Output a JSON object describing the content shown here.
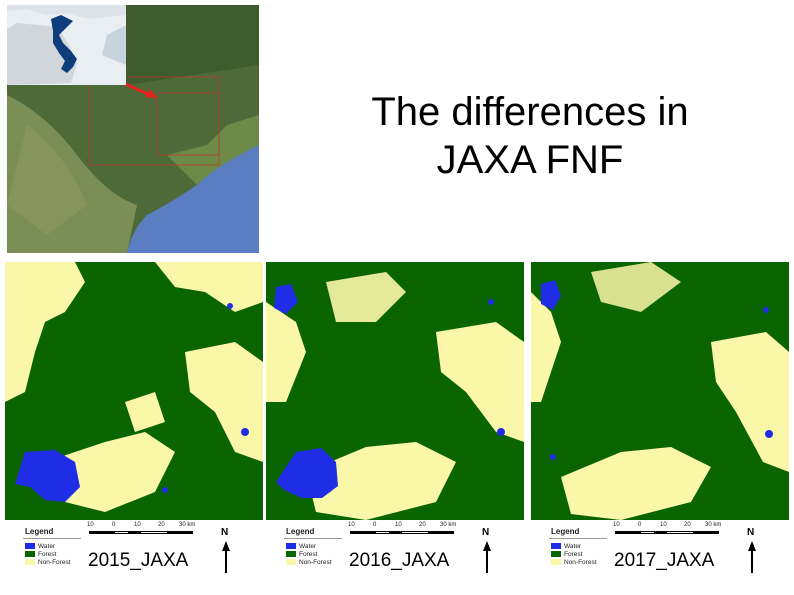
{
  "title": {
    "line1": "The differences in",
    "line2": "JAXA FNF"
  },
  "colors": {
    "water": "#1f2ee6",
    "forest": "#0a6400",
    "non_forest": "#fbf7a8",
    "sea": "#5b7ec2",
    "land": "#4f6b3b",
    "arrow": "#e8201c"
  },
  "legend": {
    "title": "Legend",
    "water": "Water",
    "forest": "Forest",
    "non_forest": "Non-Forest"
  },
  "scale_labels": [
    "10",
    "0",
    "10",
    "20",
    "30 km"
  ],
  "north_label": "N",
  "panels": [
    {
      "label": "2015_JAXA"
    },
    {
      "label": "2016_JAXA"
    },
    {
      "label": "2017_JAXA"
    }
  ]
}
